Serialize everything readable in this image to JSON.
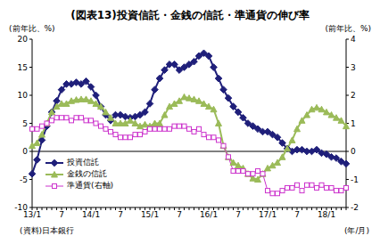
{
  "chart_data": {
    "type": "line",
    "title": "(図表13)投資信託・金銭の信託・準通貨の伸び率",
    "ylabel": "(前年比、%)",
    "y2label": "(前年比、%)",
    "xlabel": "(年/月)",
    "annotations": [
      "(資料)日本銀行"
    ],
    "categories": [
      "13/1",
      null,
      null,
      null,
      null,
      null,
      "7",
      null,
      null,
      null,
      null,
      null,
      "14/1",
      null,
      null,
      null,
      null,
      null,
      "7",
      null,
      null,
      null,
      null,
      null,
      "15/1",
      null,
      null,
      null,
      null,
      null,
      "7",
      null,
      null,
      null,
      null,
      null,
      "16/1",
      null,
      null,
      null,
      null,
      null,
      "7",
      null,
      null,
      null,
      null,
      null,
      "17/1",
      null,
      null,
      null,
      null,
      null,
      "7",
      null,
      null,
      null,
      null,
      null,
      "18/1",
      null,
      null,
      null,
      null
    ],
    "ylim": [
      -10,
      20
    ],
    "yticks": [
      -10,
      -5,
      0,
      5,
      10,
      15,
      20
    ],
    "y2lim": [
      -2,
      4
    ],
    "y2ticks": [
      -2,
      -1,
      0,
      1,
      2,
      3,
      4
    ],
    "grid": false,
    "legend": "lower left",
    "series": [
      {
        "name": "投資信託",
        "color": "#1f1f7a",
        "marker": "diamond",
        "line_style": "solid",
        "values": [
          -4,
          -1.5,
          2,
          4.5,
          7,
          9,
          11,
          12,
          12,
          12.3,
          12,
          12.5,
          11.5,
          10,
          8,
          6.5,
          5.5,
          6.5,
          6.5,
          6.2,
          6,
          6.2,
          6.5,
          7,
          8.5,
          11,
          13,
          14.5,
          15.5,
          15.5,
          14.5,
          15,
          15.5,
          16,
          17,
          17.5,
          17,
          15,
          13,
          11,
          9.5,
          8,
          7,
          6,
          5,
          4.5,
          4,
          3.5,
          3.5,
          3,
          2.5,
          1.5,
          0.5,
          0,
          0.3,
          0.3,
          0,
          0,
          0.3,
          -0.3,
          -0.5,
          -1,
          -1.2,
          -1.8,
          -2.2
        ]
      },
      {
        "name": "金銭の信託",
        "color": "#9bbb59",
        "marker": "triangle",
        "line_style": "solid",
        "values": [
          1,
          1.5,
          3,
          5,
          7,
          8,
          8.5,
          8.5,
          9,
          9.2,
          9.3,
          9.3,
          9,
          8.5,
          8,
          7,
          6,
          5,
          5,
          5,
          5.5,
          5,
          4.5,
          4.8,
          4.5,
          5,
          5,
          6.5,
          8,
          8.5,
          9,
          9.7,
          9.5,
          9.3,
          9,
          8.5,
          8,
          7.5,
          5,
          1,
          -1,
          -2,
          -2.5,
          -3,
          -4,
          -4.8,
          -5,
          -4,
          -3,
          -2.5,
          -2,
          -1,
          0.5,
          2,
          4,
          5.5,
          6.5,
          7.5,
          7.8,
          7.5,
          7,
          6.5,
          6,
          5.5,
          4.5
        ]
      },
      {
        "name": "準通貨(右軸)",
        "color": "#cc33cc",
        "marker": "square",
        "line_style": "solid",
        "axis": "y2",
        "values": [
          0.8,
          0.8,
          0.9,
          1.0,
          1.1,
          1.2,
          1.2,
          1.2,
          1.1,
          1.2,
          1.2,
          1.1,
          1.1,
          1.0,
          0.9,
          0.8,
          0.7,
          0.6,
          0.5,
          0.5,
          0.5,
          0.6,
          0.6,
          0.7,
          0.8,
          0.8,
          0.8,
          0.8,
          0.8,
          0.9,
          0.9,
          0.9,
          0.8,
          0.7,
          0.8,
          0.6,
          0.5,
          0.5,
          0.4,
          0.2,
          -0.2,
          -0.7,
          -0.7,
          -0.7,
          -0.8,
          -0.8,
          -0.7,
          -0.8,
          -1.4,
          -1.5,
          -1.5,
          -1.4,
          -1.3,
          -1.3,
          -1.2,
          -1.4,
          -1.2,
          -1.2,
          -1.3,
          -1.2,
          -1.3,
          -1.3,
          -1.4,
          -1.4,
          -1.3
        ]
      }
    ]
  }
}
